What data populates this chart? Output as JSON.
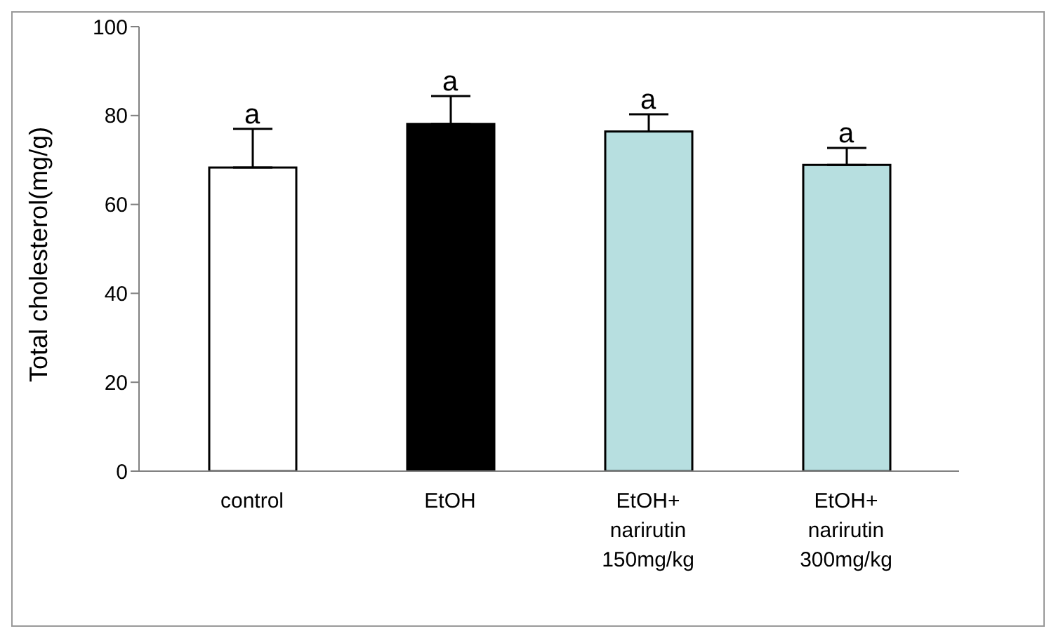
{
  "chart_data": {
    "type": "bar",
    "ylabel": "Total cholesterol(mg/g)",
    "categories": [
      "control",
      "EtOH",
      "EtOH+\nnarirutin\n150mg/kg",
      "EtOH+\nnarirutin\n300mg/kg"
    ],
    "values": [
      68.3,
      78.1,
      76.4,
      68.9
    ],
    "colors": [
      "#ffffff",
      "#000000",
      "#b7dfe0",
      "#b7dfe0"
    ],
    "errors": [
      [
        68.3,
        77.0
      ],
      [
        78.1,
        84.4
      ],
      [
        76.4,
        80.3
      ],
      [
        68.9,
        72.7
      ]
    ],
    "ylim": [
      0,
      100
    ],
    "yticks": [
      0,
      20,
      40,
      60,
      80,
      100
    ],
    "grid": false,
    "legend": false,
    "annotations": [
      "a",
      "a",
      "a",
      "a"
    ]
  }
}
